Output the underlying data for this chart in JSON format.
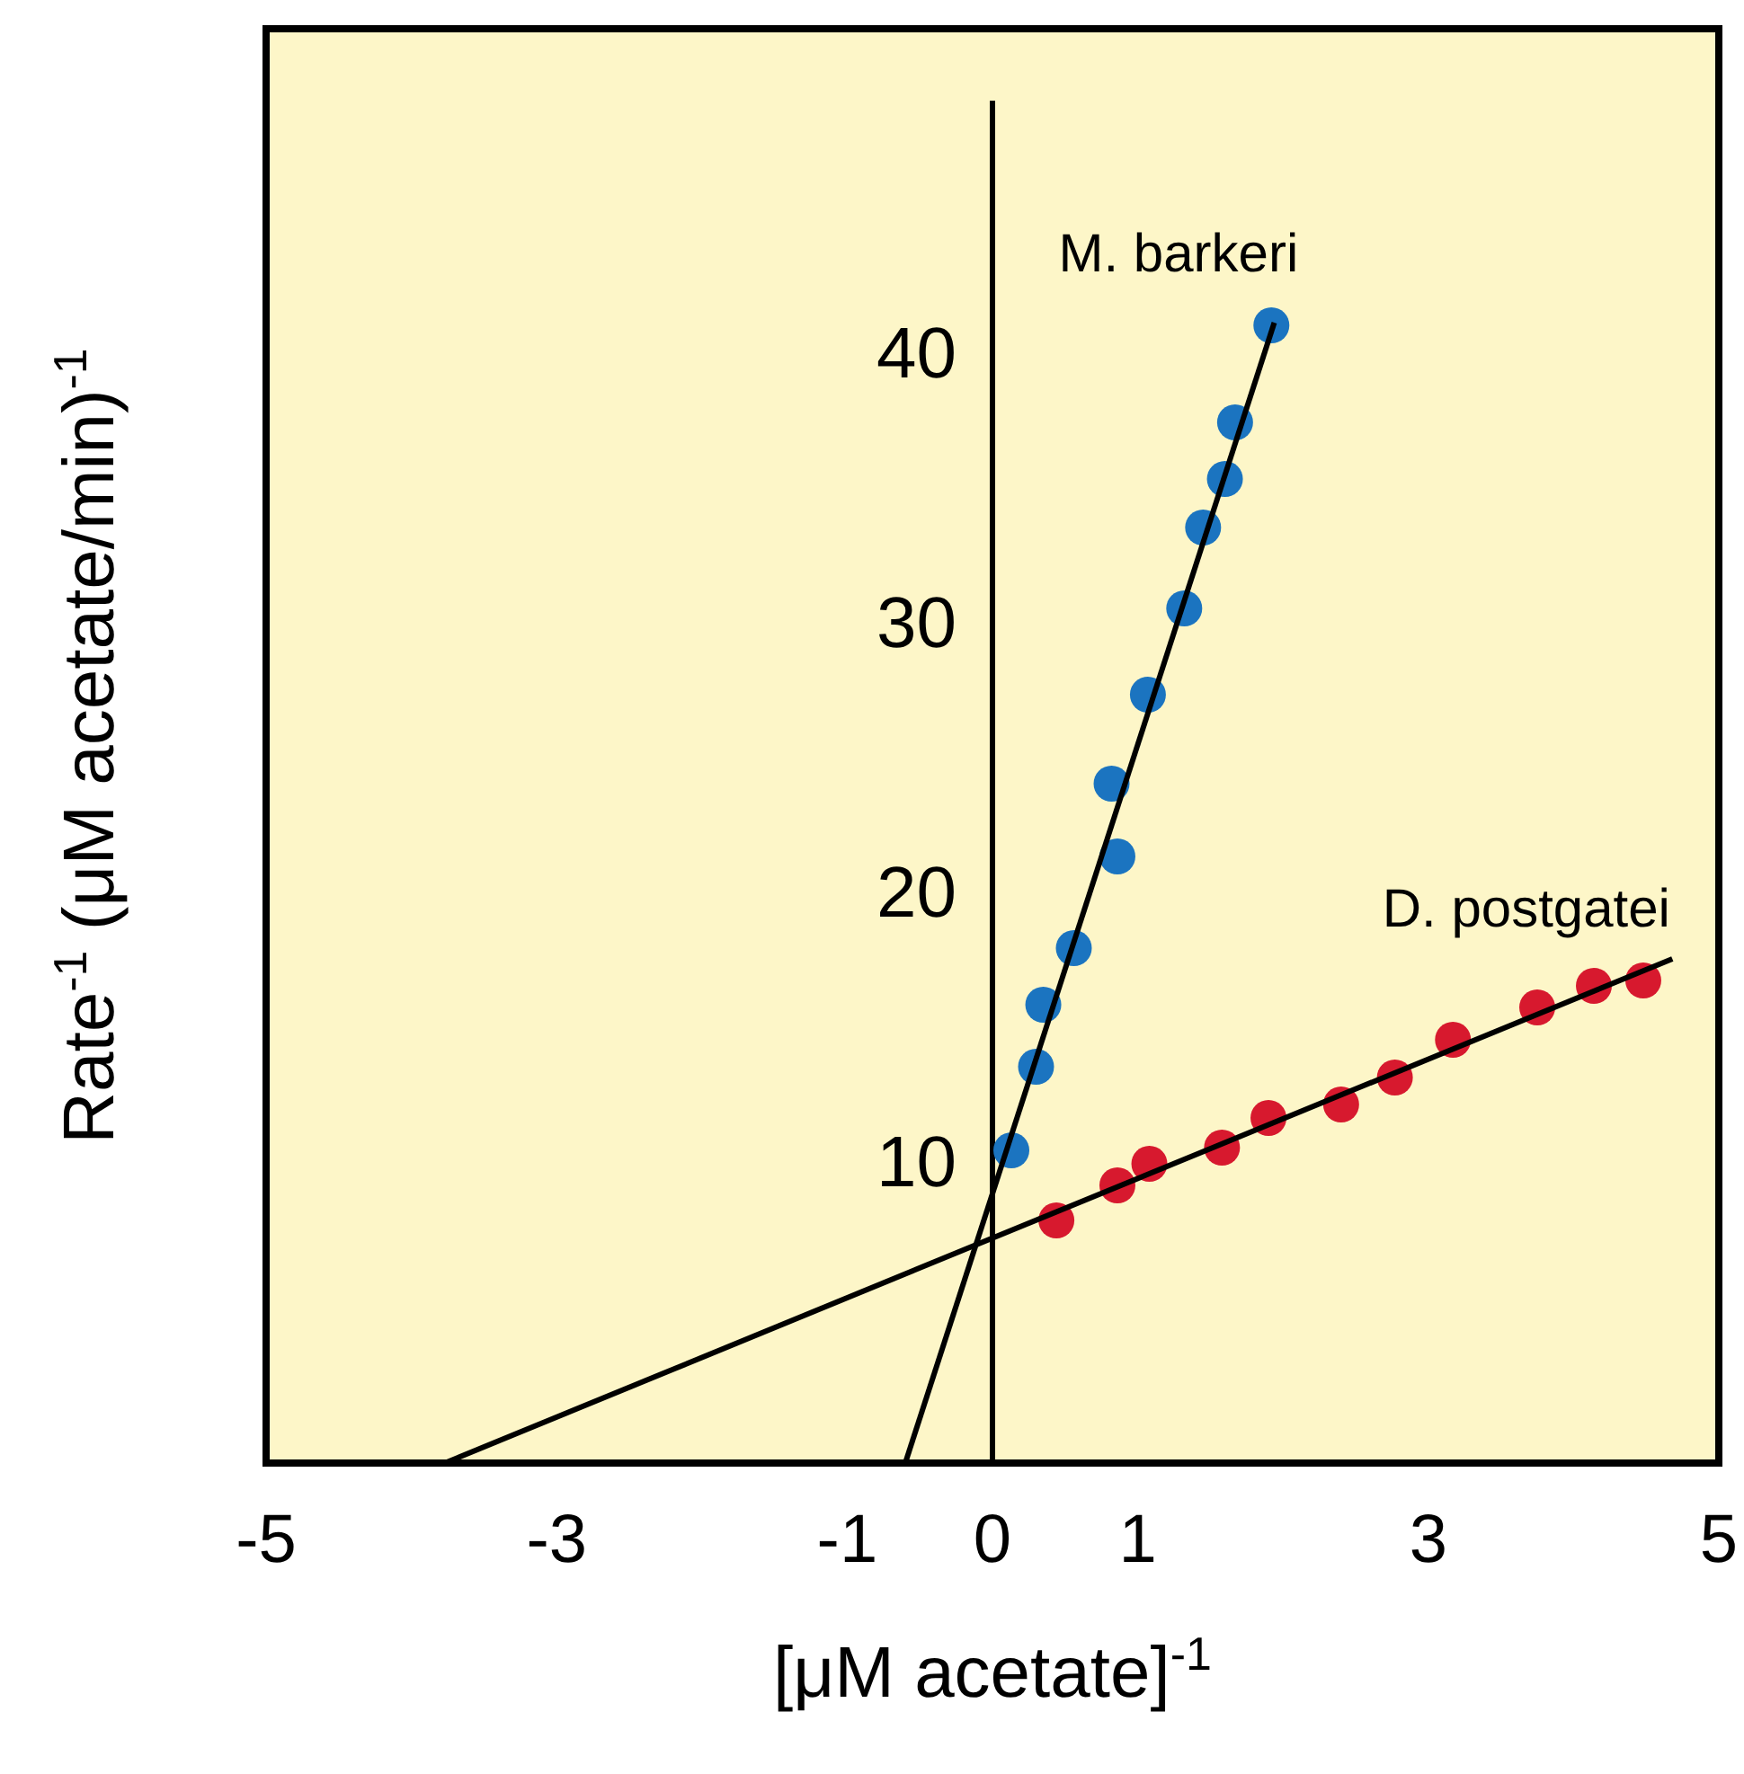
{
  "chart_data": {
    "type": "scatter",
    "xlabel": "[μM acetate]$^{-1}$",
    "ylabel": "Rate$^{-1}$ (μM acetate/min)$^{-1}$",
    "xlim": [
      -5,
      5
    ],
    "ylim": [
      -1.2,
      52
    ],
    "xticks": [
      -5,
      -3,
      -1,
      0,
      1,
      3,
      5
    ],
    "yticks": [
      10,
      20,
      30,
      40
    ],
    "grid": false,
    "marker": "circle",
    "series": [
      {
        "type": "line",
        "color": "#000000",
        "x": [
          -0.6,
          1.94
        ],
        "values": [
          -1.2,
          41.1
        ],
        "marker": "none"
      },
      {
        "type": "line",
        "color": "#000000",
        "x": [
          -3.77,
          4.68
        ],
        "values": [
          -1.2,
          17.5
        ],
        "marker": "none"
      },
      {
        "name": "M. barkeri",
        "color": "#1b74c0",
        "x": [
          0.13,
          0.3,
          0.35,
          0.56,
          0.86,
          0.82,
          1.07,
          1.32,
          1.45,
          1.6,
          1.67,
          1.92
        ],
        "values": [
          10.4,
          13.5,
          15.8,
          17.9,
          21.3,
          24.0,
          27.3,
          30.5,
          33.5,
          35.3,
          37.4,
          41.0
        ]
      },
      {
        "name": "D. postgatei",
        "color": "#d7192e",
        "x": [
          0.44,
          0.86,
          1.08,
          1.58,
          1.9,
          2.4,
          2.77,
          3.17,
          3.75,
          4.14,
          4.48
        ],
        "values": [
          7.8,
          9.1,
          9.9,
          10.5,
          11.6,
          12.1,
          13.1,
          14.5,
          15.7,
          16.5,
          16.7
        ]
      }
    ]
  }
}
